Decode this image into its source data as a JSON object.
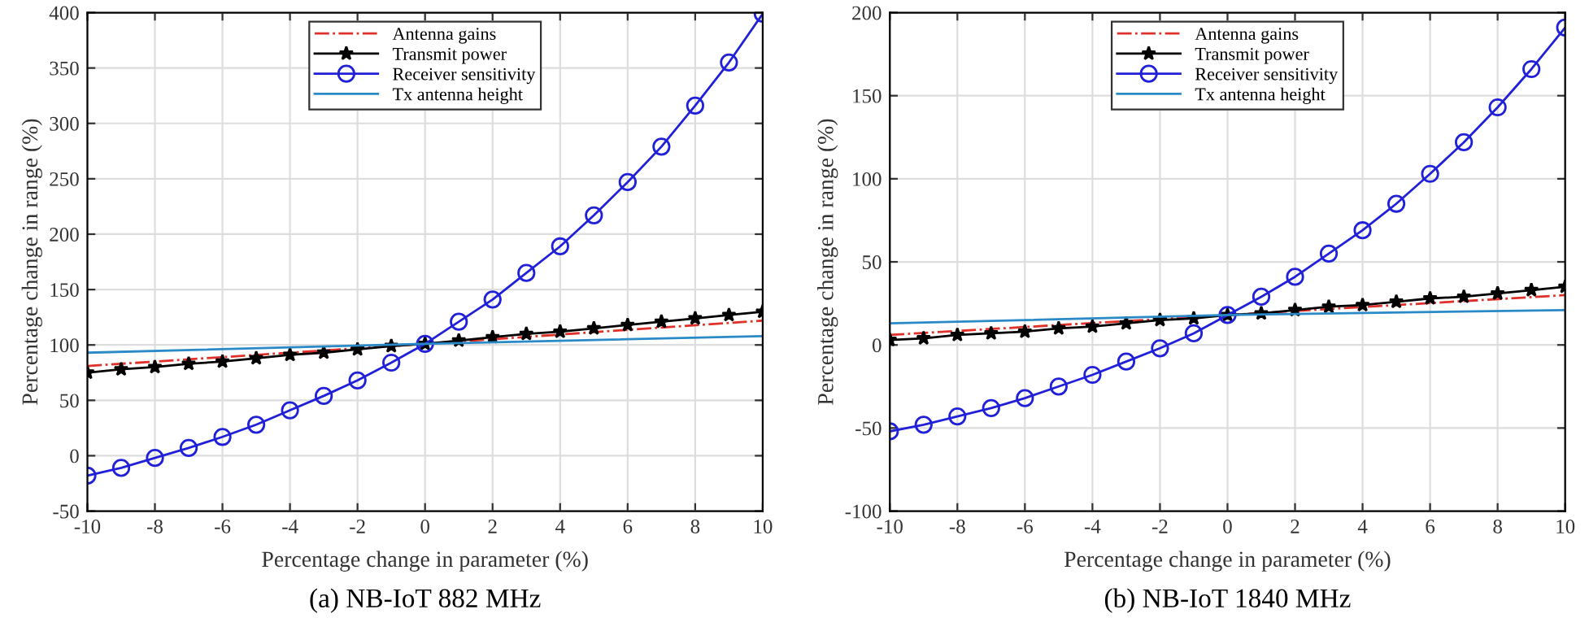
{
  "chart_data": [
    {
      "type": "line",
      "title": "(a) NB-IoT 882 MHz",
      "xlabel": "Percentage change in parameter (%)",
      "ylabel": "Percentage change in range (%)",
      "xlim": [
        -10,
        10
      ],
      "xticks": [
        -10,
        -8,
        -6,
        -4,
        -2,
        0,
        2,
        4,
        6,
        8,
        10
      ],
      "ylim": [
        -50,
        400
      ],
      "yticks": [
        -50,
        0,
        50,
        100,
        150,
        200,
        250,
        300,
        350,
        400
      ],
      "grid": true,
      "legend": "top",
      "x": [
        -10,
        -9,
        -8,
        -7,
        -6,
        -5,
        -4,
        -3,
        -2,
        -1,
        0,
        1,
        2,
        3,
        4,
        5,
        6,
        7,
        8,
        9,
        10
      ],
      "series": [
        {
          "name": "Antenna gains",
          "color": "#e0302a",
          "marker": "none",
          "line_style": "dashdot",
          "x": [
            -10,
            0,
            10
          ],
          "values": [
            81,
            101,
            122
          ]
        },
        {
          "name": "Transmit power",
          "color": "#000000",
          "marker": "star",
          "line_style": "solid",
          "values": [
            75,
            78,
            80,
            83,
            85,
            88,
            91,
            93,
            96,
            99,
            101,
            104,
            107,
            110,
            112,
            115,
            118,
            121,
            124,
            127,
            130
          ]
        },
        {
          "name": "Receiver sensitivity",
          "color": "#2020d8",
          "marker": "circle",
          "line_style": "solid",
          "values": [
            -18,
            -11,
            -2,
            7,
            17,
            28,
            41,
            54,
            68,
            84,
            101,
            121,
            141,
            165,
            189,
            217,
            247,
            279,
            316,
            355,
            399
          ]
        },
        {
          "name": "Tx antenna height",
          "color": "#2a8ac8",
          "marker": "none",
          "line_style": "solid",
          "x": [
            -10,
            0,
            10
          ],
          "values": [
            93,
            101,
            108
          ]
        }
      ]
    },
    {
      "type": "line",
      "title": "(b) NB-IoT 1840 MHz",
      "xlabel": "Percentage change in parameter (%)",
      "ylabel": "Percentage change in range (%)",
      "xlim": [
        -10,
        10
      ],
      "xticks": [
        -10,
        -8,
        -6,
        -4,
        -2,
        0,
        2,
        4,
        6,
        8,
        10
      ],
      "ylim": [
        -100,
        200
      ],
      "yticks": [
        -100,
        -50,
        0,
        50,
        100,
        150,
        200
      ],
      "grid": true,
      "legend": "top",
      "x": [
        -10,
        -9,
        -8,
        -7,
        -6,
        -5,
        -4,
        -3,
        -2,
        -1,
        0,
        1,
        2,
        3,
        4,
        5,
        6,
        7,
        8,
        9,
        10
      ],
      "series": [
        {
          "name": "Antenna gains",
          "color": "#e0302a",
          "marker": "none",
          "line_style": "dashdot",
          "x": [
            -10,
            0,
            10
          ],
          "values": [
            6,
            18,
            30
          ]
        },
        {
          "name": "Transmit power",
          "color": "#000000",
          "marker": "star",
          "line_style": "solid",
          "values": [
            3,
            4,
            6,
            7,
            8,
            10,
            11,
            13,
            15,
            16,
            18,
            19,
            21,
            23,
            24,
            26,
            28,
            29,
            31,
            33,
            35
          ]
        },
        {
          "name": "Receiver sensitivity",
          "color": "#2020d8",
          "marker": "circle",
          "line_style": "solid",
          "values": [
            -52,
            -48,
            -43,
            -38,
            -32,
            -25,
            -18,
            -10,
            -2,
            7,
            18,
            29,
            41,
            55,
            69,
            85,
            103,
            122,
            143,
            166,
            191
          ]
        },
        {
          "name": "Tx antenna height",
          "color": "#2a8ac8",
          "marker": "none",
          "line_style": "solid",
          "x": [
            -10,
            0,
            10
          ],
          "values": [
            13,
            18,
            21
          ]
        }
      ]
    }
  ]
}
